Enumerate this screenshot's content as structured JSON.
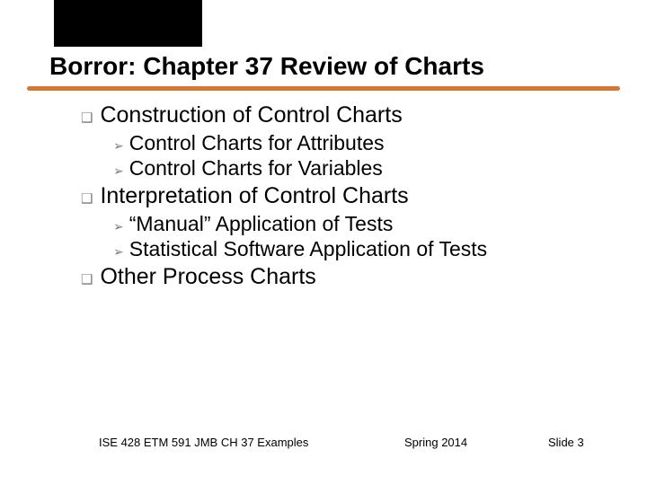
{
  "colors": {
    "background": "#ffffff",
    "title_text": "#000000",
    "body_text": "#000000",
    "bullet_gray": "#7a7a7a",
    "underline": "#d07a3a",
    "black_block": "#000000"
  },
  "typography": {
    "title_fontsize": 28,
    "lvl1_fontsize": 25,
    "lvl2_fontsize": 23,
    "footer_fontsize": 13,
    "font_family": "Arial"
  },
  "title": "Borror: Chapter 37 Review of Charts",
  "outline": {
    "items": [
      {
        "label": "Construction of Control Charts",
        "children": [
          {
            "label": "Control Charts for Attributes"
          },
          {
            "label": "Control Charts for Variables"
          }
        ]
      },
      {
        "label": "Interpretation of Control Charts",
        "children": [
          {
            "label": "“Manual” Application of Tests"
          },
          {
            "label": "Statistical Software Application of Tests"
          }
        ]
      },
      {
        "label": "Other Process Charts",
        "children": []
      }
    ]
  },
  "footer": {
    "left": "ISE 428  ETM 591 JMB   CH 37 Examples",
    "mid": "Spring 2014",
    "right": "Slide 3"
  }
}
